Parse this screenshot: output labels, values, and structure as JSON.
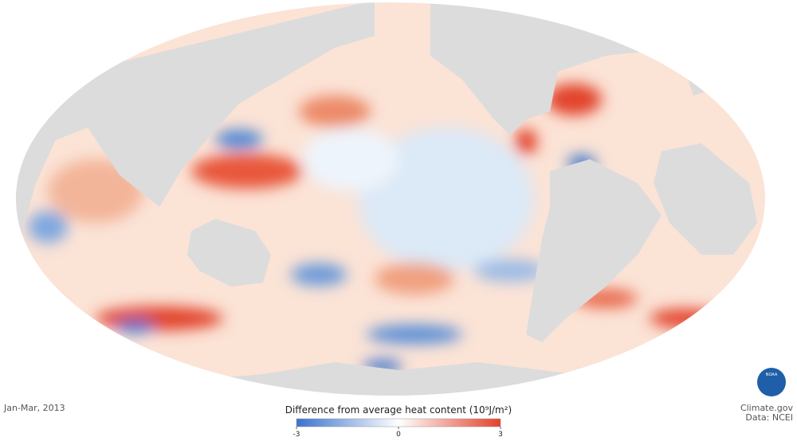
{
  "date": "Jan-Mar, 2013",
  "legend": {
    "title": "Difference from average heat content (10⁹J/m²)",
    "range": [
      -3,
      3
    ],
    "ticks": [
      -3,
      0,
      3
    ],
    "colors": [
      "#3a72cc",
      "#ffffff",
      "#e2432b"
    ]
  },
  "logo": "NOAA",
  "credit": {
    "source": "Climate.gov",
    "data": "Data: NCEI"
  }
}
